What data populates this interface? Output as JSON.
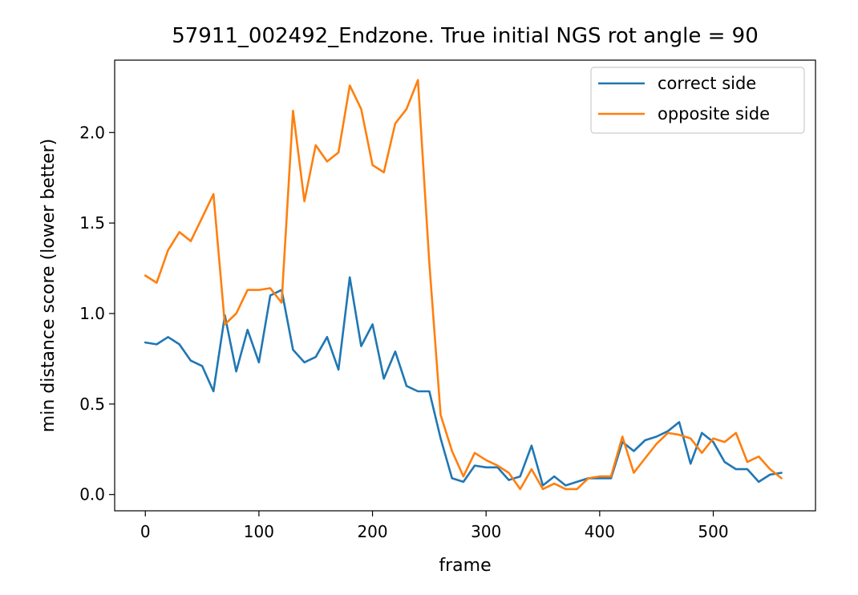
{
  "chart_data": {
    "type": "line",
    "title": "57911_002492_Endzone. True initial NGS rot angle = 90",
    "xlabel": "frame",
    "ylabel": "min distance score (lower better)",
    "xlim": [
      -27,
      590
    ],
    "ylim": [
      -0.09,
      2.4
    ],
    "xticks": [
      0,
      100,
      200,
      300,
      400,
      500
    ],
    "yticks": [
      0.0,
      0.5,
      1.0,
      1.5,
      2.0
    ],
    "xtick_labels": [
      "0",
      "100",
      "200",
      "300",
      "400",
      "500"
    ],
    "ytick_labels": [
      "0.0",
      "0.5",
      "1.0",
      "1.5",
      "2.0"
    ],
    "grid": false,
    "legend_position": "top-right",
    "x": [
      0,
      10,
      20,
      30,
      40,
      50,
      60,
      70,
      80,
      90,
      100,
      110,
      120,
      130,
      140,
      150,
      160,
      170,
      180,
      190,
      200,
      210,
      220,
      230,
      240,
      250,
      260,
      270,
      280,
      290,
      300,
      310,
      320,
      330,
      340,
      350,
      360,
      370,
      380,
      390,
      400,
      410,
      420,
      430,
      440,
      450,
      460,
      470,
      480,
      490,
      500,
      510,
      520,
      530,
      540,
      550,
      560
    ],
    "series": [
      {
        "name": "correct side",
        "color": "#1f77b4",
        "values": [
          0.84,
          0.83,
          0.87,
          0.83,
          0.74,
          0.71,
          0.57,
          0.99,
          0.68,
          0.91,
          0.73,
          1.1,
          1.13,
          0.8,
          0.73,
          0.76,
          0.87,
          0.69,
          1.2,
          0.82,
          0.94,
          0.64,
          0.79,
          0.6,
          0.57,
          0.57,
          0.31,
          0.09,
          0.07,
          0.16,
          0.15,
          0.15,
          0.08,
          0.1,
          0.27,
          0.05,
          0.1,
          0.05,
          0.07,
          0.09,
          0.09,
          0.09,
          0.29,
          0.24,
          0.3,
          0.32,
          0.35,
          0.4,
          0.17,
          0.34,
          0.29,
          0.18,
          0.14,
          0.14,
          0.07,
          0.11,
          0.12
        ]
      },
      {
        "name": "opposite side",
        "color": "#ff7f0e",
        "values": [
          1.21,
          1.17,
          1.35,
          1.45,
          1.4,
          1.53,
          1.66,
          0.94,
          1.0,
          1.13,
          1.13,
          1.14,
          1.06,
          2.12,
          1.62,
          1.93,
          1.84,
          1.89,
          2.26,
          2.13,
          1.82,
          1.78,
          2.05,
          2.13,
          2.29,
          1.28,
          0.44,
          0.24,
          0.1,
          0.23,
          0.19,
          0.16,
          0.12,
          0.03,
          0.14,
          0.03,
          0.06,
          0.03,
          0.03,
          0.09,
          0.1,
          0.1,
          0.32,
          0.12,
          0.2,
          0.28,
          0.34,
          0.33,
          0.31,
          0.23,
          0.31,
          0.29,
          0.34,
          0.18,
          0.21,
          0.14,
          0.09
        ]
      }
    ]
  }
}
